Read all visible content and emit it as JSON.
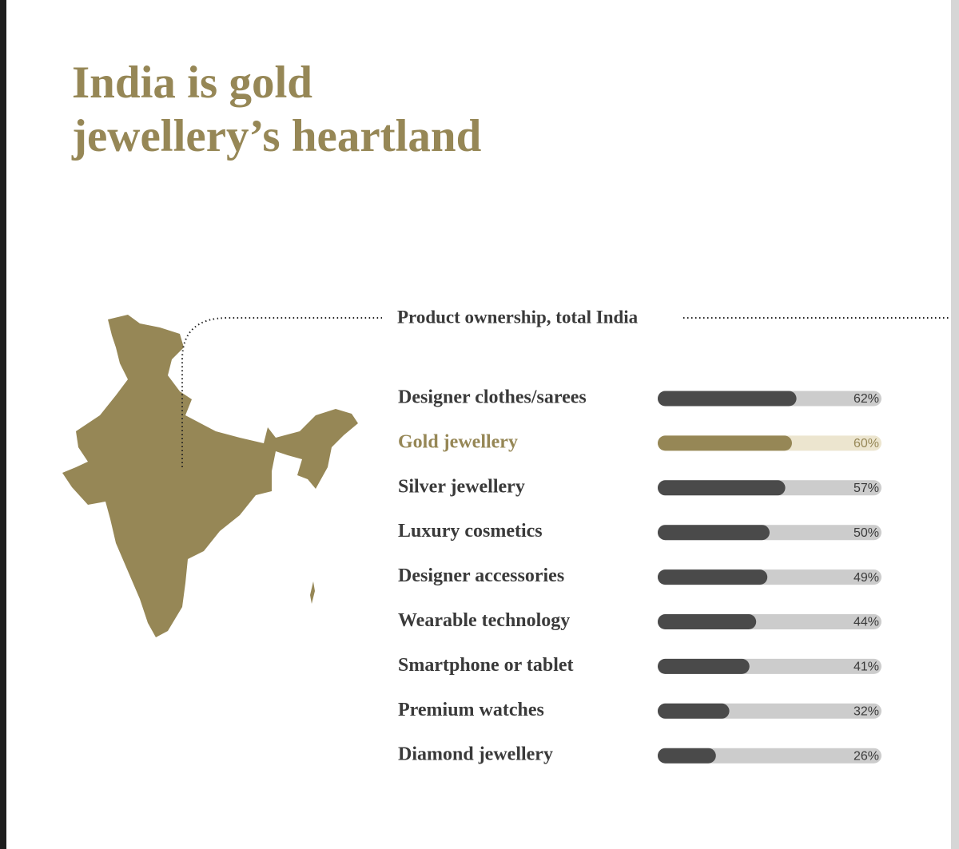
{
  "chart_data": {
    "type": "hbar",
    "title": "India is gold jewellery’s heartland",
    "subtitle": "Product ownership, total India",
    "categories": [
      "Designer clothes/sarees",
      "Gold jewellery",
      "Silver jewellery",
      "Luxury cosmetics",
      "Designer accessories",
      "Wearable technology",
      "Smartphone or tablet",
      "Premium watches",
      "Diamond jewellery"
    ],
    "values": [
      62,
      60,
      57,
      50,
      49,
      44,
      41,
      32,
      26
    ],
    "value_labels": [
      "62%",
      "60%",
      "57%",
      "50%",
      "49%",
      "44%",
      "41%",
      "32%",
      "26%"
    ],
    "xlim": [
      0,
      100
    ],
    "colors": [
      "#4a4a4a",
      "#968756",
      "#4a4a4a",
      "#4a4a4a",
      "#4a4a4a",
      "#4a4a4a",
      "#4a4a4a",
      "#4a4a4a",
      "#4a4a4a"
    ],
    "track_colors": [
      "#cccccc",
      "#ece5cf",
      "#cccccc",
      "#cccccc",
      "#cccccc",
      "#cccccc",
      "#cccccc",
      "#cccccc",
      "#cccccc"
    ],
    "label_colors": [
      "#3a3a3a",
      "#968756",
      "#3a3a3a",
      "#3a3a3a",
      "#3a3a3a",
      "#3a3a3a",
      "#3a3a3a",
      "#3a3a3a",
      "#3a3a3a"
    ]
  }
}
